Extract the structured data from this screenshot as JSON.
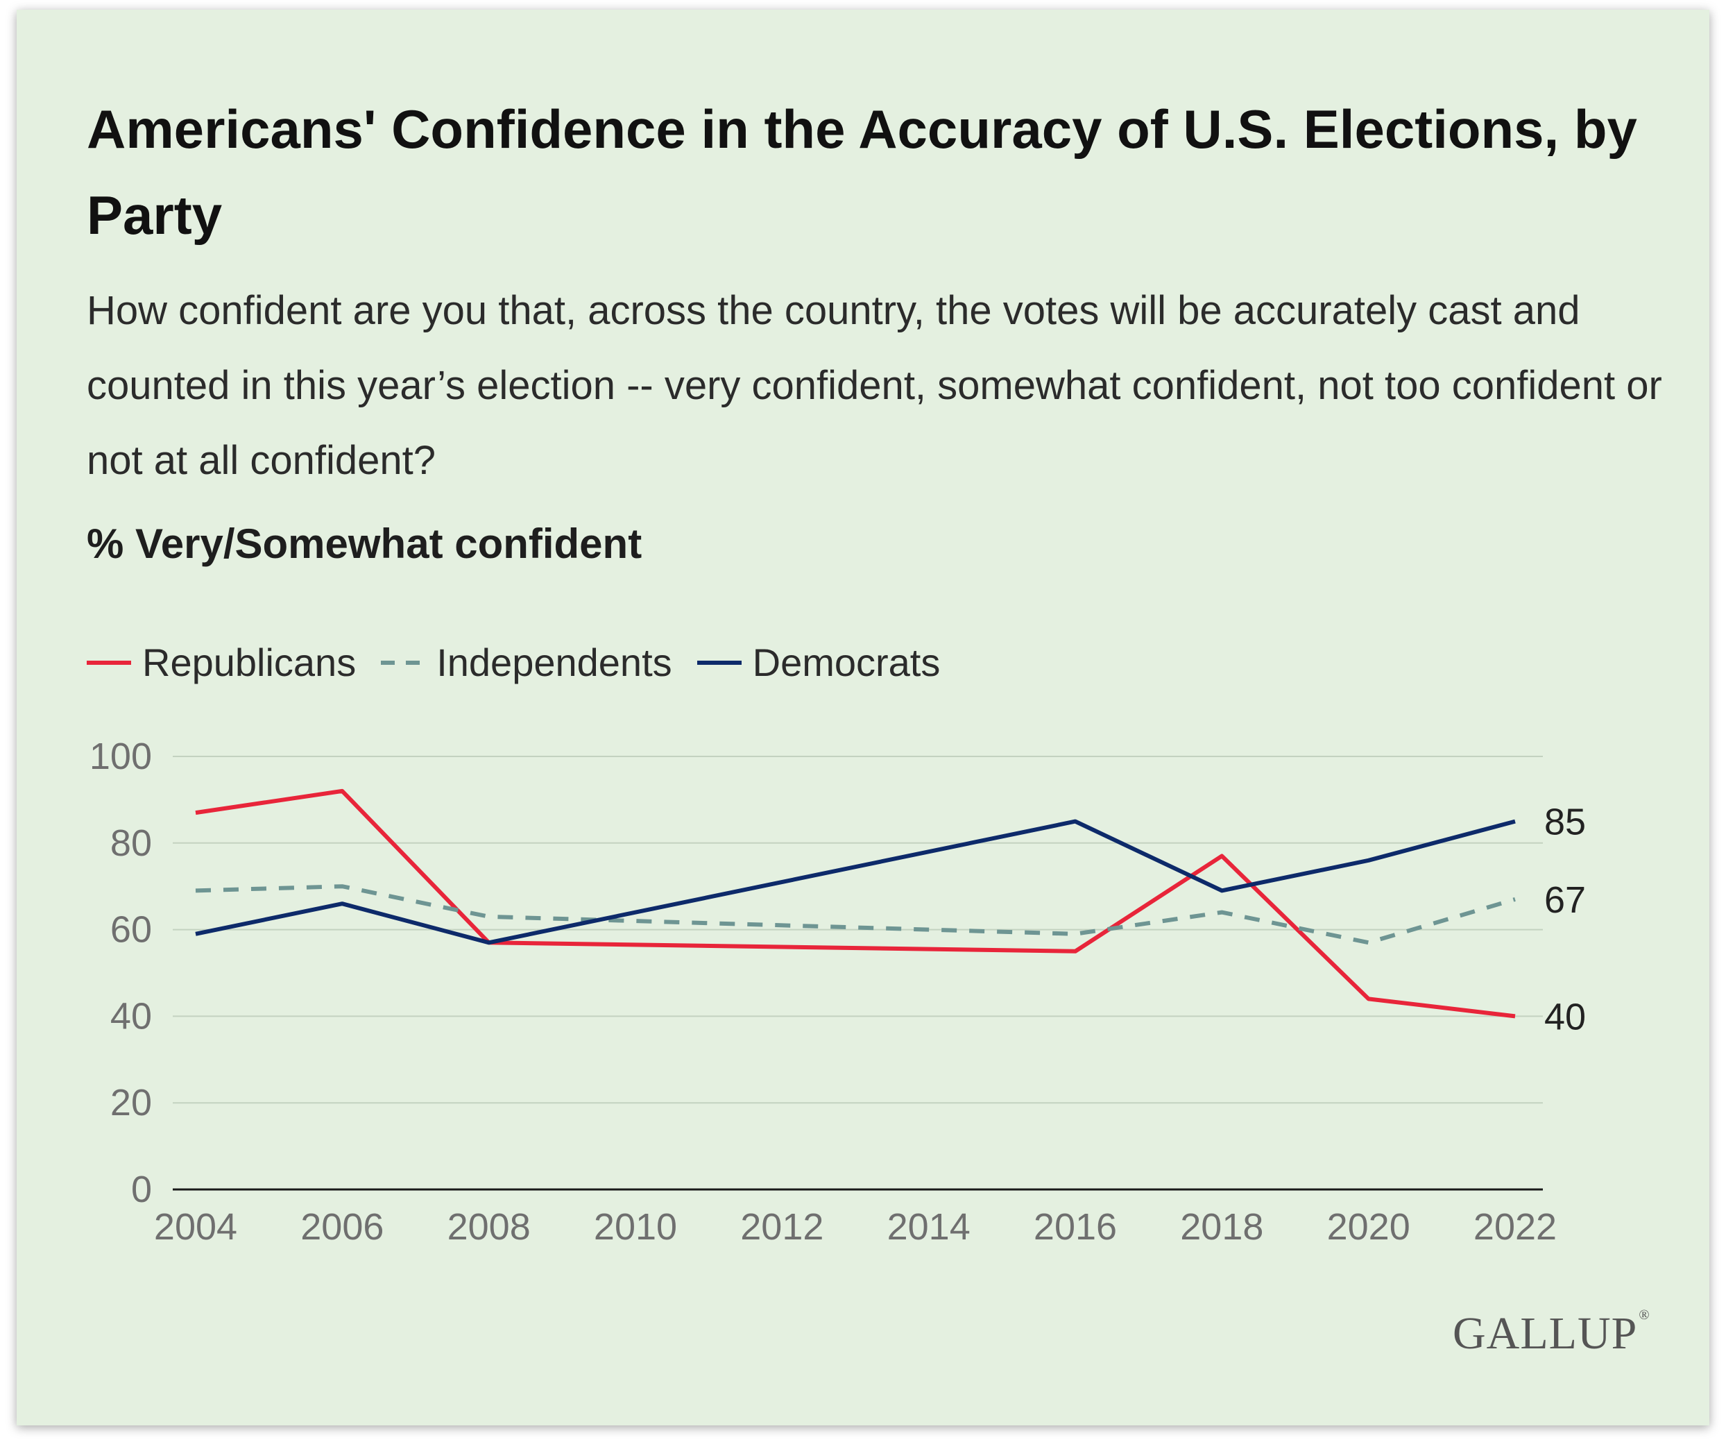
{
  "title": "Americans' Confidence in the Accuracy of U.S. Elections, by Party",
  "question": "How confident are you that, across the country, the votes will be accurately cast and counted in this year’s election -- very confident, somewhat confident, not too confident or not at all confident?",
  "measure": "% Very/Somewhat confident",
  "logo_text": "GALLUP",
  "legend": [
    {
      "label": "Republicans",
      "color": "#e8253a",
      "dashed": false
    },
    {
      "label": "Independents",
      "color": "#6e9593",
      "dashed": true
    },
    {
      "label": "Democrats",
      "color": "#0d2a6a",
      "dashed": false
    }
  ],
  "chart_data": {
    "type": "line",
    "title": "Americans' Confidence in the Accuracy of U.S. Elections, by Party",
    "ylabel": "% Very/Somewhat confident",
    "xlabel": "",
    "x_ticks": [
      2004,
      2006,
      2008,
      2010,
      2012,
      2014,
      2016,
      2018,
      2020,
      2022
    ],
    "y_ticks": [
      0,
      20,
      40,
      60,
      80,
      100
    ],
    "xlim": [
      2004,
      2022
    ],
    "ylim": [
      0,
      100
    ],
    "grid": true,
    "legend_position": "top-left",
    "series": [
      {
        "name": "Republicans",
        "color": "#e8253a",
        "dashed": false,
        "x": [
          2004,
          2006,
          2008,
          2016,
          2018,
          2020,
          2022
        ],
        "values": [
          87,
          92,
          57,
          55,
          77,
          44,
          40
        ],
        "end_label": "40"
      },
      {
        "name": "Independents",
        "color": "#6e9593",
        "dashed": true,
        "x": [
          2004,
          2006,
          2008,
          2016,
          2018,
          2020,
          2022
        ],
        "values": [
          69,
          70,
          63,
          59,
          64,
          57,
          67
        ],
        "end_label": "67"
      },
      {
        "name": "Democrats",
        "color": "#0d2a6a",
        "dashed": false,
        "x": [
          2004,
          2006,
          2008,
          2016,
          2018,
          2020,
          2022
        ],
        "values": [
          59,
          66,
          57,
          85,
          69,
          76,
          85
        ],
        "end_label": "85"
      }
    ]
  }
}
